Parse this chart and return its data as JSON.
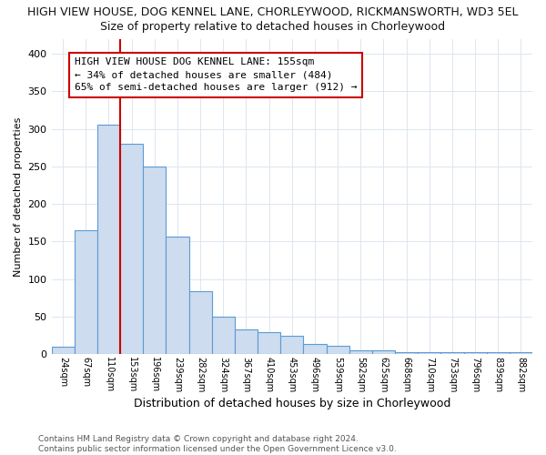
{
  "title": "HIGH VIEW HOUSE, DOG KENNEL LANE, CHORLEYWOOD, RICKMANSWORTH, WD3 5EL",
  "subtitle": "Size of property relative to detached houses in Chorleywood",
  "xlabel": "Distribution of detached houses by size in Chorleywood",
  "ylabel": "Number of detached properties",
  "categories": [
    "24sqm",
    "67sqm",
    "110sqm",
    "153sqm",
    "196sqm",
    "239sqm",
    "282sqm",
    "324sqm",
    "367sqm",
    "410sqm",
    "453sqm",
    "496sqm",
    "539sqm",
    "582sqm",
    "625sqm",
    "668sqm",
    "710sqm",
    "753sqm",
    "796sqm",
    "839sqm",
    "882sqm"
  ],
  "values": [
    10,
    165,
    305,
    280,
    250,
    157,
    84,
    50,
    33,
    29,
    25,
    14,
    11,
    5,
    5,
    3,
    3,
    3,
    3,
    3,
    3
  ],
  "bar_color": "#cddcee",
  "bar_edge_color": "#5b9bd5",
  "vline_color": "#cc0000",
  "vline_x_index": 3,
  "annotation_text": "HIGH VIEW HOUSE DOG KENNEL LANE: 155sqm\n← 34% of detached houses are smaller (484)\n65% of semi-detached houses are larger (912) →",
  "annotation_box_color": "#ffffff",
  "annotation_box_edge": "#cc0000",
  "ylim": [
    0,
    420
  ],
  "yticks": [
    0,
    50,
    100,
    150,
    200,
    250,
    300,
    350,
    400
  ],
  "footer": "Contains HM Land Registry data © Crown copyright and database right 2024.\nContains public sector information licensed under the Open Government Licence v3.0.",
  "bg_color": "#ffffff",
  "grid_color": "#dce6f0"
}
